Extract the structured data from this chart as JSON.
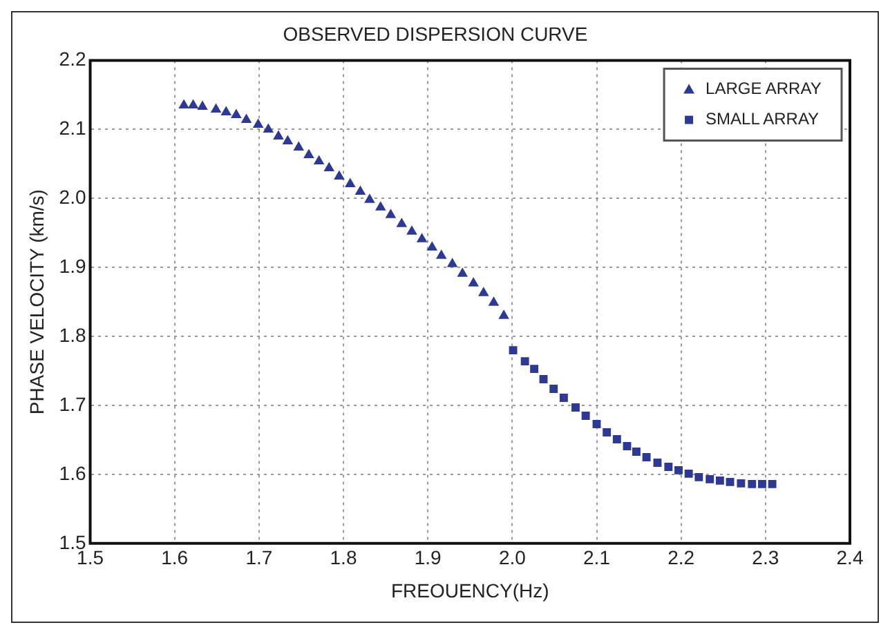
{
  "chart_data": {
    "type": "scatter",
    "title": "OBSERVED DISPERSION CURVE",
    "xlabel": "FREOUENCY(Hz)",
    "ylabel": "PHASE VELOCITY (km/s)",
    "xlim": [
      1.5,
      2.4
    ],
    "xticks": [
      1.5,
      1.6,
      1.7,
      1.8,
      1.9,
      {
        "value": 2,
        "label": "2.0"
      },
      2.1,
      2.2,
      2.3,
      2.4
    ],
    "ylim": [
      1.5,
      2.2
    ],
    "yticks": [
      1.5,
      1.6,
      1.7,
      1.8,
      1.9,
      {
        "value": 2,
        "label": "2.0"
      },
      2.1,
      2.2
    ],
    "grid": true,
    "legend": "top right",
    "series": [
      {
        "name": "LARGE ARRAY",
        "color": "#2e3a92",
        "marker": "triangle",
        "x": [
          1.611,
          1.622,
          1.633,
          1.649,
          1.661,
          1.673,
          1.685,
          1.699,
          1.711,
          1.723,
          1.734,
          1.747,
          1.759,
          1.771,
          1.783,
          1.795,
          1.808,
          1.82,
          1.831,
          1.844,
          1.856,
          1.869,
          1.881,
          1.893,
          1.905,
          1.916,
          1.929,
          1.941,
          1.954,
          1.966,
          1.978,
          1.99
        ],
        "values": [
          2.135,
          2.135,
          2.133,
          2.129,
          2.125,
          2.121,
          2.114,
          2.107,
          2.1,
          2.09,
          2.083,
          2.074,
          2.063,
          2.054,
          2.044,
          2.032,
          2.021,
          2.01,
          1.998,
          1.987,
          1.976,
          1.963,
          1.952,
          1.941,
          1.929,
          1.917,
          1.905,
          1.891,
          1.877,
          1.863,
          1.849,
          1.83
        ]
      },
      {
        "name": "SMALL ARRAY",
        "color": "#2e3a92",
        "marker": "square",
        "x": [
          2.001,
          2.015,
          2.026,
          2.037,
          2.049,
          2.061,
          2.075,
          2.087,
          2.1,
          2.112,
          2.124,
          2.136,
          2.147,
          2.159,
          2.172,
          2.185,
          2.197,
          2.209,
          2.221,
          2.234,
          2.246,
          2.258,
          2.271,
          2.284,
          2.296,
          2.308
        ],
        "values": [
          1.78,
          1.764,
          1.753,
          1.738,
          1.724,
          1.711,
          1.697,
          1.685,
          1.673,
          1.661,
          1.651,
          1.641,
          1.633,
          1.625,
          1.617,
          1.611,
          1.606,
          1.601,
          1.596,
          1.593,
          1.591,
          1.589,
          1.587,
          1.586,
          1.586,
          1.586
        ]
      }
    ]
  }
}
